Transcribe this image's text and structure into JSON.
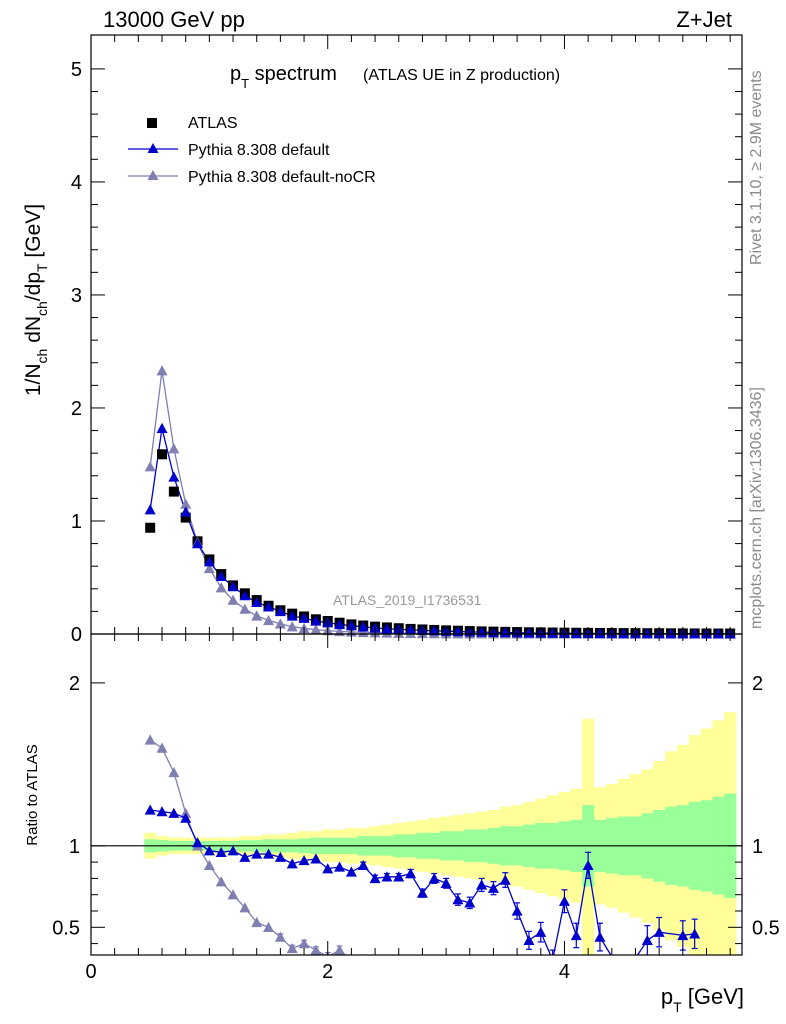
{
  "header": {
    "energy_label": "13000 GeV pp",
    "process_label": "Z+Jet"
  },
  "side_labels": {
    "rivet": "Rivet 3.1.10, ≥ 2.9M events",
    "mcplots": "mcplots.cern.ch [arXiv:1306.3436]"
  },
  "chart_data": [
    {
      "type": "scatter",
      "title_main": "p",
      "title_sub": "T",
      "title_rest": " spectrum",
      "subtitle": "(ATLAS UE in Z production)",
      "watermark": "ATLAS_2019_I1736531",
      "ylabel": "1/N_ch dN_ch/dp_T [GeV]",
      "xlim": [
        0,
        5.5
      ],
      "ylim": [
        0,
        5.3
      ],
      "yticks": [
        "0",
        "1",
        "2",
        "3",
        "4",
        "5"
      ],
      "legend_position": "top-left",
      "legend": [
        {
          "label": "ATLAS",
          "marker": "square",
          "color": "#000000"
        },
        {
          "label": "Pythia 8.308 default",
          "marker": "triangle",
          "color": "#0000cc"
        },
        {
          "label": "Pythia 8.308 default-noCR",
          "marker": "triangle",
          "color": "#7f7fb2"
        }
      ],
      "x": [
        0.5,
        0.6,
        0.7,
        0.8,
        0.9,
        1.0,
        1.1,
        1.2,
        1.3,
        1.4,
        1.5,
        1.6,
        1.7,
        1.8,
        1.9,
        2.0,
        2.1,
        2.2,
        2.3,
        2.4,
        2.5,
        2.6,
        2.7,
        2.8,
        2.9,
        3.0,
        3.1,
        3.2,
        3.3,
        3.4,
        3.5,
        3.6,
        3.7,
        3.8,
        3.9,
        4.0,
        4.1,
        4.2,
        4.3,
        4.4,
        4.5,
        4.6,
        4.7,
        4.8,
        4.9,
        5.0,
        5.1,
        5.2,
        5.3,
        5.4
      ],
      "series": [
        {
          "name": "ATLAS",
          "color": "#000000",
          "marker": "square",
          "values": [
            0.94,
            1.59,
            1.26,
            1.03,
            0.82,
            0.66,
            0.53,
            0.43,
            0.36,
            0.3,
            0.25,
            0.21,
            0.18,
            0.155,
            0.13,
            0.115,
            0.1,
            0.085,
            0.075,
            0.065,
            0.058,
            0.051,
            0.045,
            0.04,
            0.036,
            0.032,
            0.029,
            0.026,
            0.023,
            0.021,
            0.019,
            0.017,
            0.015,
            0.014,
            0.013,
            0.012,
            0.011,
            0.01,
            0.009,
            0.0085,
            0.008,
            0.0075,
            0.007,
            0.0065,
            0.006,
            0.0055,
            0.005,
            0.0047,
            0.0044,
            0.0041
          ]
        },
        {
          "name": "Pythia 8.308 default",
          "color": "#0000cc",
          "marker": "triangle",
          "values": [
            1.1,
            1.82,
            1.39,
            1.08,
            0.8,
            0.64,
            0.51,
            0.42,
            0.34,
            0.28,
            0.24,
            0.2,
            0.16,
            0.14,
            0.115,
            0.1,
            0.085,
            0.073,
            0.064,
            0.053,
            0.047,
            0.041,
            0.037,
            0.032,
            0.029,
            0.025,
            0.022,
            0.019,
            0.017,
            0.015,
            0.013,
            0.011,
            0.009,
            0.008,
            0.007,
            0.006,
            0.005,
            0.005,
            0.004,
            0.004,
            0.003,
            0.003,
            0.003,
            0.002,
            0.002,
            0.002,
            0.002,
            0.002,
            0.002,
            0.002
          ]
        },
        {
          "name": "Pythia 8.308 default-noCR",
          "color": "#7f7fb2",
          "marker": "triangle",
          "values": [
            1.48,
            2.33,
            1.64,
            1.15,
            0.81,
            0.58,
            0.41,
            0.3,
            0.22,
            0.16,
            0.12,
            0.09,
            0.065,
            0.05,
            0.038,
            0.03,
            0.023,
            0.018,
            0.014,
            0.011,
            0.009,
            0.007,
            0.006,
            0.005,
            0.004,
            0.003,
            0.003,
            0.002,
            0.002,
            0.002,
            0.001,
            0.001,
            0.001,
            0.001,
            0.001,
            0.001,
            0.001,
            0.001,
            0.001,
            0.001,
            0.001,
            0.001,
            0.001,
            0.001,
            0.001,
            0.001,
            0.001,
            0.001,
            0.001,
            0.001
          ]
        }
      ]
    },
    {
      "type": "line",
      "ylabel": "Ratio to ATLAS",
      "xlabel_main": "p",
      "xlabel_sub": "T",
      "xlabel_rest": " [GeV]",
      "xlim": [
        0,
        5.5
      ],
      "ylim": [
        0.33,
        2.3
      ],
      "xticks": [
        "0",
        "2",
        "4"
      ],
      "yticks": [
        "0.5",
        "1",
        "2"
      ],
      "reference_line": 1,
      "bands": {
        "x_edges": [
          0.45,
          0.55,
          0.65,
          0.75,
          0.85,
          0.95,
          1.05,
          1.15,
          1.25,
          1.35,
          1.45,
          1.55,
          1.65,
          1.75,
          1.85,
          1.95,
          2.05,
          2.15,
          2.25,
          2.35,
          2.45,
          2.55,
          2.65,
          2.75,
          2.85,
          2.95,
          3.05,
          3.15,
          3.25,
          3.35,
          3.45,
          3.55,
          3.65,
          3.75,
          3.85,
          3.95,
          4.05,
          4.15,
          4.25,
          4.35,
          4.45,
          4.55,
          4.65,
          4.75,
          4.85,
          4.95,
          5.05,
          5.15,
          5.25,
          5.35,
          5.45
        ],
        "green_halfwidth": [
          0.04,
          0.035,
          0.03,
          0.03,
          0.03,
          0.03,
          0.03,
          0.03,
          0.035,
          0.035,
          0.04,
          0.04,
          0.04,
          0.045,
          0.05,
          0.05,
          0.05,
          0.05,
          0.06,
          0.06,
          0.06,
          0.07,
          0.07,
          0.08,
          0.08,
          0.09,
          0.09,
          0.1,
          0.1,
          0.11,
          0.12,
          0.12,
          0.13,
          0.14,
          0.14,
          0.15,
          0.16,
          0.25,
          0.16,
          0.17,
          0.18,
          0.18,
          0.2,
          0.22,
          0.24,
          0.25,
          0.27,
          0.28,
          0.3,
          0.32
        ],
        "yellow_halfwidth": [
          0.08,
          0.06,
          0.05,
          0.05,
          0.05,
          0.05,
          0.05,
          0.05,
          0.06,
          0.06,
          0.07,
          0.07,
          0.08,
          0.09,
          0.09,
          0.1,
          0.1,
          0.11,
          0.11,
          0.12,
          0.13,
          0.14,
          0.15,
          0.16,
          0.17,
          0.18,
          0.19,
          0.2,
          0.21,
          0.22,
          0.24,
          0.25,
          0.27,
          0.29,
          0.31,
          0.33,
          0.35,
          0.78,
          0.36,
          0.38,
          0.41,
          0.44,
          0.47,
          0.52,
          0.58,
          0.62,
          0.68,
          0.72,
          0.77,
          0.82
        ]
      },
      "series": [
        {
          "name": "Pythia 8.308 default",
          "color": "#0000cc",
          "x": [
            0.5,
            0.6,
            0.7,
            0.8,
            0.9,
            1.0,
            1.1,
            1.2,
            1.3,
            1.4,
            1.5,
            1.6,
            1.7,
            1.8,
            1.9,
            2.0,
            2.1,
            2.2,
            2.3,
            2.4,
            2.5,
            2.6,
            2.7,
            2.8,
            2.9,
            3.0,
            3.1,
            3.2,
            3.3,
            3.4,
            3.5,
            3.6,
            3.7,
            3.8,
            3.9,
            4.0,
            4.1,
            4.2,
            4.3,
            4.5,
            4.7,
            4.8,
            5.0,
            5.1
          ],
          "values": [
            1.22,
            1.21,
            1.2,
            1.17,
            1.02,
            0.97,
            0.96,
            0.97,
            0.93,
            0.95,
            0.95,
            0.93,
            0.89,
            0.91,
            0.92,
            0.86,
            0.87,
            0.84,
            0.88,
            0.8,
            0.81,
            0.81,
            0.83,
            0.71,
            0.8,
            0.77,
            0.67,
            0.65,
            0.76,
            0.74,
            0.79,
            0.6,
            0.42,
            0.47,
            0.3,
            0.66,
            0.45,
            0.88,
            0.44,
            0.2,
            0.42,
            0.47,
            0.45,
            0.46
          ],
          "errors": [
            0.01,
            0.01,
            0.01,
            0.01,
            0.01,
            0.01,
            0.01,
            0.01,
            0.01,
            0.01,
            0.01,
            0.01,
            0.01,
            0.01,
            0.01,
            0.015,
            0.015,
            0.015,
            0.02,
            0.02,
            0.02,
            0.02,
            0.025,
            0.025,
            0.03,
            0.03,
            0.035,
            0.035,
            0.04,
            0.04,
            0.045,
            0.05,
            0.055,
            0.06,
            0.06,
            0.07,
            0.075,
            0.08,
            0.085,
            0.09,
            0.09,
            0.09,
            0.09,
            0.09
          ]
        },
        {
          "name": "Pythia 8.308 default-noCR",
          "color": "#7f7fb2",
          "x": [
            0.5,
            0.6,
            0.7,
            0.8,
            0.9,
            1.0,
            1.1,
            1.2,
            1.3,
            1.4,
            1.5,
            1.6,
            1.7,
            1.8,
            1.9,
            2.0,
            2.1,
            2.2,
            2.3
          ],
          "values": [
            1.65,
            1.6,
            1.45,
            1.2,
            1.0,
            0.88,
            0.78,
            0.7,
            0.62,
            0.53,
            0.5,
            0.44,
            0.37,
            0.4,
            0.36,
            0.32,
            0.36,
            0.3,
            0.3
          ],
          "errors": [
            0.01,
            0.01,
            0.01,
            0.01,
            0.01,
            0.01,
            0.01,
            0.01,
            0.015,
            0.015,
            0.015,
            0.02,
            0.02,
            0.02,
            0.02,
            0.025,
            0.025,
            0.03,
            0.03
          ]
        }
      ]
    }
  ]
}
